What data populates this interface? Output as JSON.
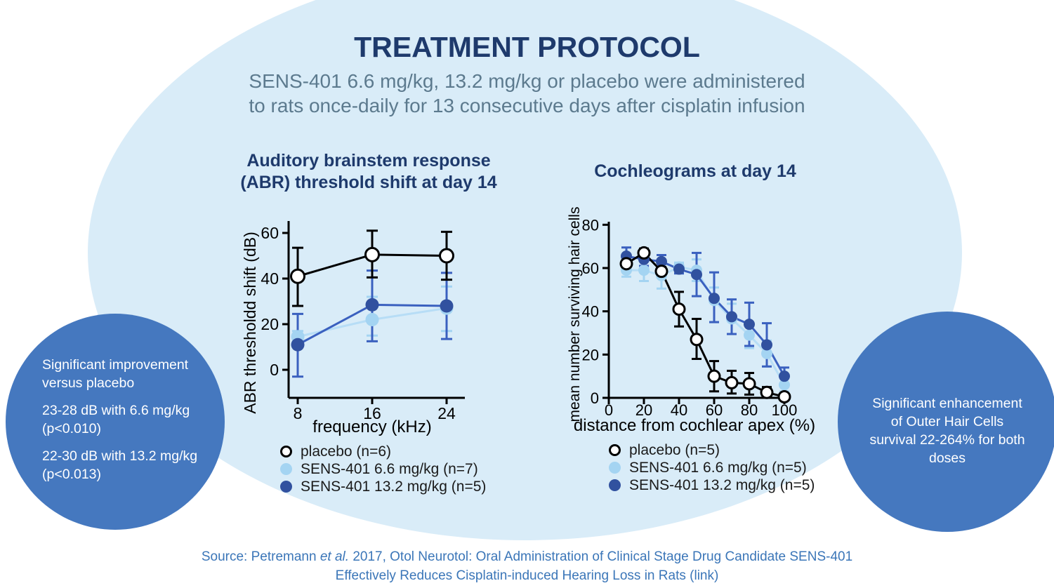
{
  "title": "TREATMENT PROTOCOL",
  "subtitle": {
    "line1": "SENS-401 6.6 mg/kg, 13.2 mg/kg or placebo were administered",
    "line2": "to rats once-daily for 13 consecutive days after cisplatin infusion"
  },
  "colors": {
    "background_ellipse": "#d9ecf8",
    "title_navy": "#1e3a6c",
    "subtitle_slate": "#5c7a8e",
    "callout_blue": "#4578bf",
    "callout_text": "#ffffff",
    "source_blue": "#3b76b8",
    "placebo_line": "#000000",
    "placebo_fill": "#ffffff",
    "sens66_marker": "#a4d4f2",
    "sens66_line": "#b7ddf6",
    "sens132_marker": "#31519f",
    "sens132_line": "#3a60bf"
  },
  "left_callout": {
    "heading_line1": "Significant improvement",
    "heading_line2": "versus placebo",
    "item1_line1": "23-28 dB with 6.6 mg/kg",
    "item1_line2": "(p<0.010)",
    "item2_line1": "22-30 dB with 13.2 mg/kg",
    "item2_line2": "(p<0.013)"
  },
  "right_callout": {
    "line1": "Significant enhancement",
    "line2": "of Outer Hair Cells",
    "line3": "survival 22-264% for both",
    "line4": "doses"
  },
  "source": {
    "prefix": "Source: Petremann ",
    "etal": "et al.",
    "rest": " 2017, Otol Neurotol: Oral Administration of Clinical Stage Drug Candidate SENS-401",
    "line2_pre": "Effectively Reduces Cisplatin-induced Hearing Loss in Rats (",
    "link_text": "link",
    "line2_post": ")"
  },
  "chart_data": [
    {
      "id": "abr",
      "type": "line",
      "title": "Auditory brainstem response (ABR) threshold shift at day 14",
      "title_lines": [
        "Auditory brainstem response",
        "(ABR) threshold shift at day 14"
      ],
      "xlabel": "frequency (kHz)",
      "ylabel": "ABR thresholdd shift (dB)",
      "x": [
        8,
        16,
        24
      ],
      "x_ticks": [
        8,
        16,
        24
      ],
      "y_ticks": [
        0,
        20,
        40,
        60
      ],
      "ylim": [
        0,
        60
      ],
      "grid": false,
      "legend_position": "below",
      "series": [
        {
          "key": "placebo",
          "name": "placebo (n=6)",
          "values": [
            41,
            50.5,
            50
          ],
          "err_up": [
            12.5,
            10.5,
            10.5
          ],
          "err_down": [
            13,
            10,
            10.5
          ],
          "line_color": "#000000",
          "marker_fill": "#ffffff",
          "marker_stroke": "#000000",
          "err_color": "#000000"
        },
        {
          "key": "sens66",
          "name": "SENS-401 6.6 mg/kg (n=7)",
          "values": [
            14.5,
            22,
            27
          ],
          "err_up": [
            2.5,
            10,
            9.5
          ],
          "err_down": [
            2.5,
            7,
            10
          ],
          "line_color": "#b7ddf6",
          "marker_fill": "#a4d4f2",
          "marker_stroke": "",
          "err_color": "#a4d4f2"
        },
        {
          "key": "sens132",
          "name": "SENS-401 13.2 mg/kg (n=5)",
          "values": [
            11,
            28.5,
            28
          ],
          "err_up": [
            13.5,
            15,
            14.5
          ],
          "err_down": [
            14,
            16,
            14.5
          ],
          "line_color": "#3a60bf",
          "marker_fill": "#31519f",
          "marker_stroke": "",
          "err_color": "#3a60bf"
        }
      ]
    },
    {
      "id": "coch",
      "type": "line",
      "title": "Cochleograms at day 14",
      "title_lines": [
        "Cochleograms at day 14"
      ],
      "xlabel": "distance from cochlear apex (%)",
      "ylabel": "mean number surviving hair cells",
      "x": [
        10,
        20,
        30,
        40,
        50,
        60,
        70,
        80,
        90,
        100
      ],
      "x_ticks": [
        0,
        20,
        40,
        60,
        80,
        100
      ],
      "y_ticks": [
        0,
        20,
        40,
        60,
        80
      ],
      "ylim": [
        0,
        80
      ],
      "grid": false,
      "legend_position": "below",
      "series": [
        {
          "key": "placebo",
          "name": "placebo (n=5)",
          "values": [
            62,
            67,
            58.5,
            41,
            27,
            10,
            7,
            6.5,
            2.5,
            0.5
          ],
          "err_up": [
            3,
            2,
            2,
            8,
            9.5,
            7,
            5.5,
            5,
            2.5,
            1.5
          ],
          "err_down": [
            3,
            2,
            2,
            8,
            9,
            7,
            5,
            5,
            2.5,
            1
          ],
          "line_color": "#000000",
          "marker_fill": "#ffffff",
          "marker_stroke": "#000000",
          "err_color": "#000000"
        },
        {
          "key": "sens66",
          "name": "SENS-401 6.6 mg/kg (n=5)",
          "values": [
            59,
            59,
            56.5,
            60.5,
            59,
            45,
            36.5,
            29,
            20.5,
            6
          ],
          "err_up": [
            3,
            1,
            1,
            2,
            5,
            6,
            7,
            6,
            6,
            3
          ],
          "err_down": [
            3,
            5,
            6,
            2,
            5,
            10,
            7,
            6,
            6,
            3
          ],
          "line_color": "#b7ddf6",
          "marker_fill": "#a4d4f2",
          "marker_stroke": "",
          "err_color": "#a4d4f2"
        },
        {
          "key": "sens132",
          "name": "SENS-401 13.2 mg/kg (n=5)",
          "values": [
            65.5,
            64,
            63,
            59.5,
            57,
            46,
            37.5,
            34,
            24.5,
            10
          ],
          "err_up": [
            4,
            3,
            3,
            2,
            10,
            12,
            8,
            10,
            10,
            4
          ],
          "err_down": [
            3,
            3,
            3,
            2,
            10,
            11,
            8,
            10,
            10,
            4
          ],
          "line_color": "#3a60bf",
          "marker_fill": "#31519f",
          "marker_stroke": "",
          "err_color": "#3a60bf"
        }
      ]
    }
  ]
}
